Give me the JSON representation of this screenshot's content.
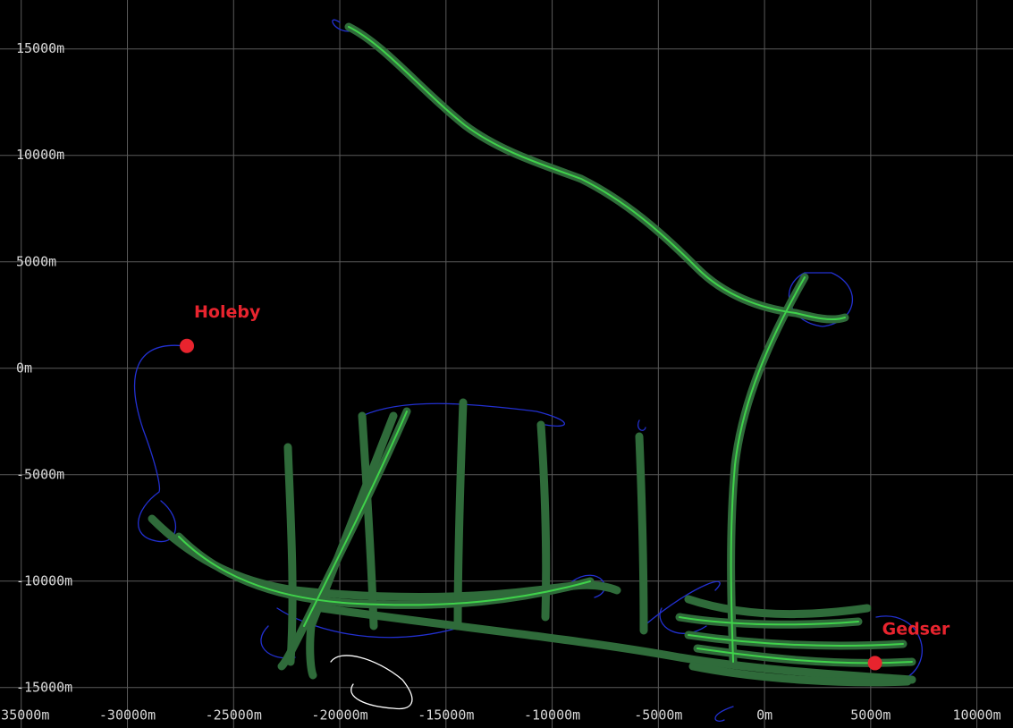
{
  "chart_data": {
    "type": "map",
    "xlim": [
      -36000,
      11700
    ],
    "ylim": [
      -16900,
      17300
    ],
    "xticks": [
      {
        "value": -35000,
        "label": "-35000m"
      },
      {
        "value": -30000,
        "label": "-30000m"
      },
      {
        "value": -25000,
        "label": "-25000m"
      },
      {
        "value": -20000,
        "label": "-20000m"
      },
      {
        "value": -15000,
        "label": "-15000m"
      },
      {
        "value": -10000,
        "label": "-10000m"
      },
      {
        "value": -5000,
        "label": "-5000m"
      },
      {
        "value": 0,
        "label": "0m"
      },
      {
        "value": 5000,
        "label": "5000m"
      },
      {
        "value": 10000,
        "label": "10000m"
      }
    ],
    "yticks": [
      {
        "value": -15000,
        "label": "-15000m"
      },
      {
        "value": -10000,
        "label": "-10000m"
      },
      {
        "value": -5000,
        "label": "-5000m"
      },
      {
        "value": 0,
        "label": "0m"
      },
      {
        "value": 5000,
        "label": "5000m"
      },
      {
        "value": 10000,
        "label": "10000m"
      },
      {
        "value": 15000,
        "label": "15000m"
      }
    ],
    "grid": true,
    "points": [
      {
        "name": "Holeby",
        "x": -27200,
        "y": 1050,
        "color": "#e8242e"
      },
      {
        "name": "Gedser",
        "x": 5200,
        "y": -13850,
        "color": "#e8242e"
      }
    ]
  }
}
